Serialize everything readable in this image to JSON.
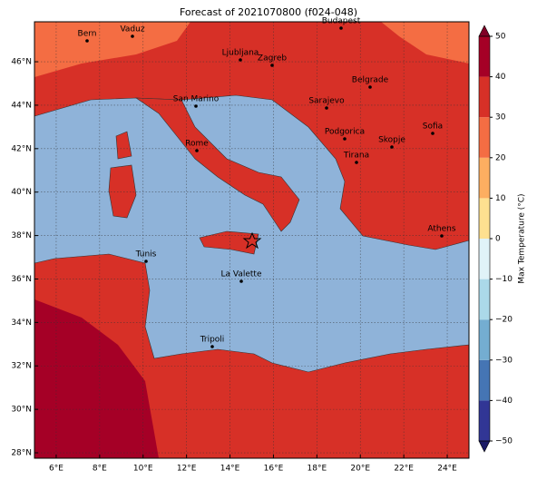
{
  "title": "Forecast of 2021070800 (f024-048)",
  "map": {
    "xlim": [
      5,
      25
    ],
    "ylim": [
      27.75,
      47.84
    ],
    "xticks": [
      {
        "value": 6,
        "label": "6°E"
      },
      {
        "value": 8,
        "label": "8°E"
      },
      {
        "value": 10,
        "label": "10°E"
      },
      {
        "value": 12,
        "label": "12°E"
      },
      {
        "value": 14,
        "label": "14°E"
      },
      {
        "value": 16,
        "label": "16°E"
      },
      {
        "value": 18,
        "label": "18°E"
      },
      {
        "value": 20,
        "label": "20°E"
      },
      {
        "value": 22,
        "label": "22°E"
      },
      {
        "value": 24,
        "label": "24°E"
      }
    ],
    "yticks": [
      {
        "value": 28,
        "label": "28°N"
      },
      {
        "value": 30,
        "label": "30°N"
      },
      {
        "value": 32,
        "label": "32°N"
      },
      {
        "value": 34,
        "label": "34°N"
      },
      {
        "value": 36,
        "label": "36°N"
      },
      {
        "value": 38,
        "label": "38°N"
      },
      {
        "value": 40,
        "label": "40°N"
      },
      {
        "value": 42,
        "label": "42°N"
      },
      {
        "value": 44,
        "label": "44°N"
      },
      {
        "value": 46,
        "label": "46°N"
      }
    ],
    "grid": true,
    "cities": [
      "Bern",
      "Vaduz",
      "Budapest",
      "Ljubljana",
      "Zagreb",
      "Belgrade",
      "Sarajevo",
      "San Marino",
      "Sofia",
      "Podgorica",
      "Skopje",
      "Rome",
      "Tirana",
      "Athens",
      "Tunis",
      "La Valette",
      "Tripoli"
    ]
  },
  "colorbar": {
    "label": "Max Temperature (°C)",
    "lim": [
      -50,
      50
    ],
    "ticks": [
      {
        "value": -50,
        "label": "−50"
      },
      {
        "value": -40,
        "label": "−40"
      },
      {
        "value": -30,
        "label": "−30"
      },
      {
        "value": -20,
        "label": "−20"
      },
      {
        "value": -10,
        "label": "−10"
      },
      0,
      10,
      20,
      30,
      40,
      50
    ],
    "colors": [
      "#313695",
      "#4575b4",
      "#74add1",
      "#abd9e9",
      "#e0f3f8",
      "#fee090",
      "#fdae61",
      "#f46d43",
      "#d73027",
      "#a50026"
    ],
    "under_color": "#1a1a66",
    "over_color": "#800026"
  }
}
